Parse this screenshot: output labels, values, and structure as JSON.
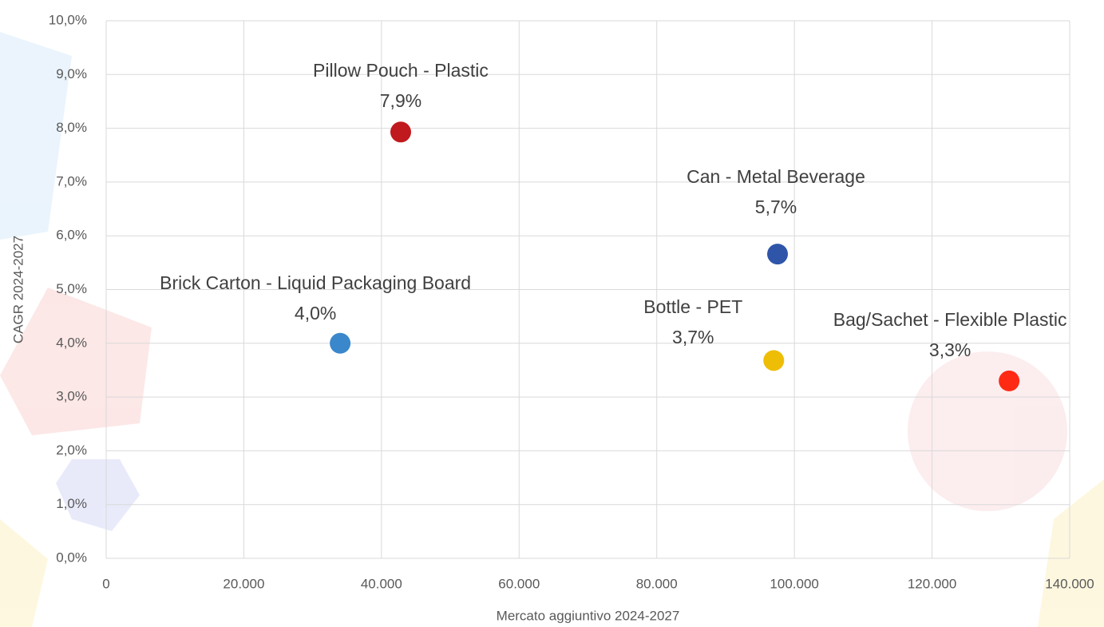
{
  "chart_data": {
    "type": "scatter",
    "x_label": "Mercato aggiuntivo 2024-2027",
    "y_label": "CAGR 2024-2027",
    "xlim": [
      0,
      140000
    ],
    "ylim": [
      0,
      10
    ],
    "xticks": [
      0,
      {
        "value": 20000,
        "label": "20.000"
      },
      {
        "value": 40000,
        "label": "40.000"
      },
      {
        "value": 60000,
        "label": "60.000"
      },
      {
        "value": 80000,
        "label": "80.000"
      },
      {
        "value": 100000,
        "label": "100.000"
      },
      {
        "value": 120000,
        "label": "120.000"
      },
      {
        "value": 140000,
        "label": "140.000"
      }
    ],
    "yticks": [
      {
        "value": 0,
        "label": "0,0%"
      },
      {
        "value": 1,
        "label": "1,0%"
      },
      {
        "value": 2,
        "label": "2,0%"
      },
      {
        "value": 3,
        "label": "3,0%"
      },
      {
        "value": 4,
        "label": "4,0%"
      },
      {
        "value": 5,
        "label": "5,0%"
      },
      {
        "value": 6,
        "label": "6,0%"
      },
      {
        "value": 7,
        "label": "7,0%"
      },
      {
        "value": 8,
        "label": "8,0%"
      },
      {
        "value": 9,
        "label": "9,0%"
      },
      {
        "value": 10,
        "label": "10,0%"
      }
    ],
    "grid": true,
    "series": [
      {
        "name": "Pillow Pouch - Plastic",
        "color": "#c0191e",
        "x": [
          42800
        ],
        "values": [
          7.93
        ],
        "value_labels": [
          "7,9%"
        ]
      },
      {
        "name": "Brick Carton - Liquid Packaging Board",
        "color": "#3a87cc",
        "x": [
          34000
        ],
        "values": [
          4.0
        ],
        "value_labels": [
          "4,0%"
        ]
      },
      {
        "name": "Can - Metal Beverage",
        "color": "#2f55a8",
        "x": [
          97550
        ],
        "values": [
          5.66
        ],
        "value_labels": [
          "5,7%"
        ]
      },
      {
        "name": "Bottle - PET",
        "color": "#eebd06",
        "x": [
          97000
        ],
        "values": [
          3.68
        ],
        "value_labels": [
          "3,7%"
        ]
      },
      {
        "name": "Bag/Sachet - Flexible Plastic",
        "color": "#ff2a14",
        "x": [
          131200
        ],
        "values": [
          3.3
        ],
        "value_labels": [
          "3,3%"
        ]
      }
    ]
  }
}
